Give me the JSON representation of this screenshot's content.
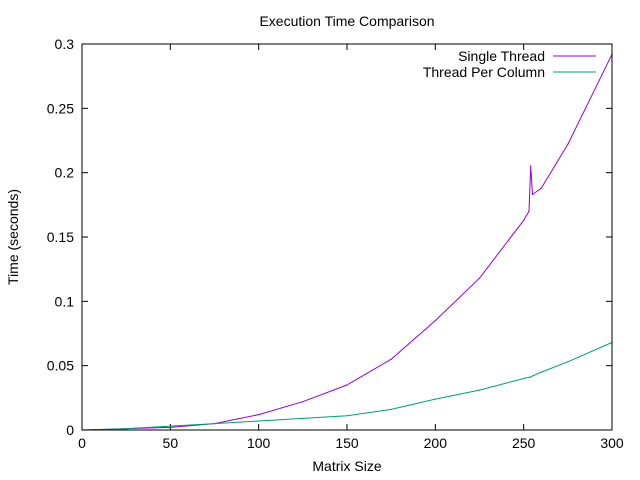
{
  "chart_data": {
    "type": "line",
    "title": "Execution Time Comparison",
    "xlabel": "Matrix Size",
    "ylabel": "Time (seconds)",
    "xlim": [
      0,
      300
    ],
    "ylim": [
      0,
      0.3
    ],
    "xticks": [
      "0",
      "50",
      "100",
      "150",
      "200",
      "250",
      "300"
    ],
    "yticks": [
      "0",
      "0.05",
      "0.1",
      "0.15",
      "0.2",
      "0.25",
      "0.3"
    ],
    "grid": false,
    "legend_position": "top-right",
    "x": [
      0,
      25,
      50,
      75,
      100,
      125,
      150,
      175,
      200,
      225,
      250,
      253,
      254,
      255,
      260,
      275,
      300
    ],
    "series": [
      {
        "name": "Single Thread",
        "color": "#9400d3",
        "values": [
          0,
          0.001,
          0.002,
          0.005,
          0.012,
          0.022,
          0.035,
          0.055,
          0.085,
          0.118,
          0.163,
          0.17,
          0.205,
          0.183,
          0.188,
          0.222,
          0.292
        ]
      },
      {
        "name": "Thread Per Column",
        "color": "#009e73",
        "values": [
          0,
          0.001,
          0.003,
          0.005,
          0.007,
          0.009,
          0.011,
          0.016,
          0.024,
          0.031,
          0.04,
          0.041,
          0.041,
          0.042,
          0.045,
          0.053,
          0.068
        ]
      }
    ]
  }
}
